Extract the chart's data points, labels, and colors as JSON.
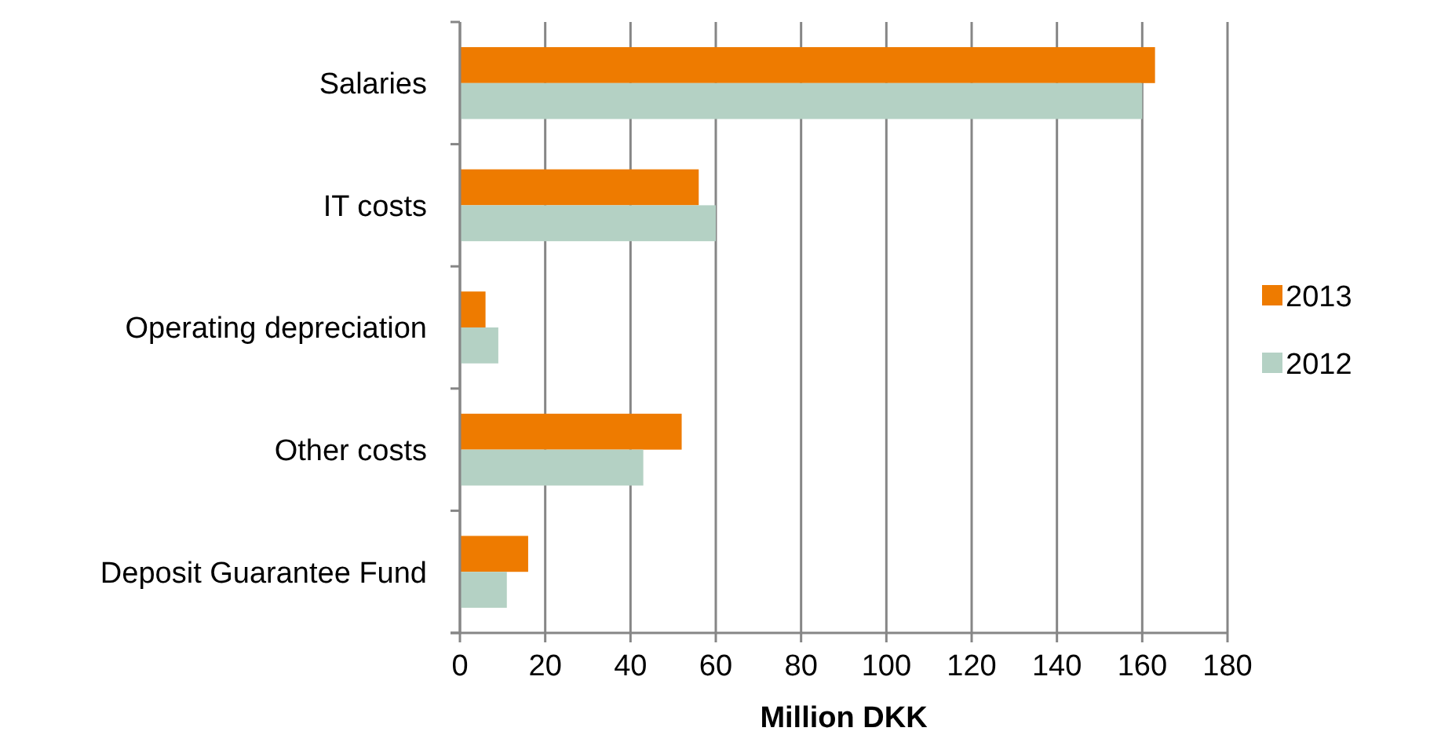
{
  "chart_data": {
    "type": "bar",
    "orientation": "horizontal",
    "xlabel": "Million DKK",
    "categories": [
      "Salaries",
      "IT costs",
      "Operating depreciation",
      "Other costs",
      "Deposit Guarantee Fund"
    ],
    "series": [
      {
        "name": "2013",
        "color": "#ee7b00",
        "values": [
          163,
          56,
          6,
          52,
          16
        ]
      },
      {
        "name": "2012",
        "color": "#b4d1c4",
        "values": [
          160,
          60,
          9,
          43,
          11
        ]
      }
    ],
    "xlim": [
      0,
      180
    ],
    "xticks": [
      0,
      20,
      40,
      60,
      80,
      100,
      120,
      140,
      160,
      180
    ],
    "grid": "x",
    "legend": "right"
  }
}
